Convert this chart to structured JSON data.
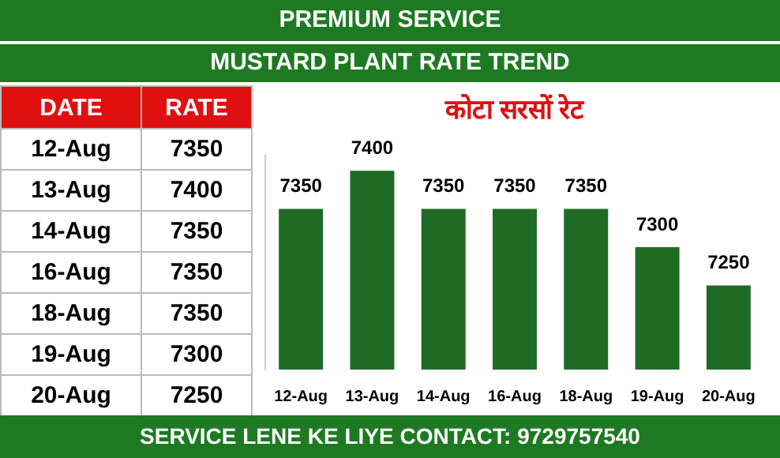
{
  "chart_data": {
    "type": "bar",
    "title": "कोटा सरसों रेट",
    "annotations": [
      "PREMIUM SERVICE",
      "MUSTARD PLANT RATE TREND",
      "DATE",
      "RATE",
      "SERVICE LENE KE LIYE CONTACT: 9729757540"
    ],
    "categories": [
      "12-Aug",
      "13-Aug",
      "14-Aug",
      "16-Aug",
      "18-Aug",
      "19-Aug",
      "20-Aug"
    ],
    "values": [
      7350,
      7400,
      7350,
      7350,
      7350,
      7300,
      7250
    ],
    "value_labels": [
      "7350",
      "7400",
      "7350",
      "7350",
      "7350",
      "7300",
      "7250"
    ],
    "color": "#1f6b26",
    "ylim": [
      7140,
      7420
    ],
    "grid": false,
    "legend": false
  }
}
